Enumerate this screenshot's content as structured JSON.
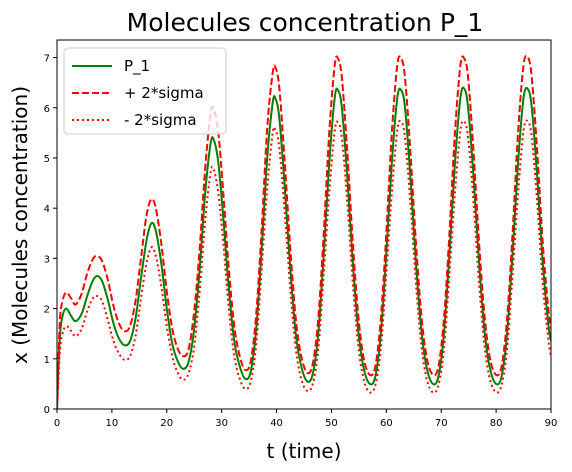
{
  "chart_data": {
    "type": "line",
    "title": "Molecules concentration P_1",
    "xlabel": "t (time)",
    "ylabel": "x (Molecules concentration)",
    "xlim": [
      0,
      90
    ],
    "ylim": [
      0,
      7.35
    ],
    "xticks": [
      "0",
      "10",
      "20",
      "30",
      "40",
      "50",
      "60",
      "70",
      "80",
      "90"
    ],
    "yticks": [
      "0",
      "1",
      "2",
      "3",
      "4",
      "5",
      "6",
      "7"
    ],
    "grid": false,
    "legend_position": "top-left",
    "colors": {
      "P_1": "#008000",
      "plus": "#ff0000",
      "minus": "#ff0000"
    },
    "series": [
      {
        "name": "P_1",
        "style": "solid",
        "points": [
          [
            0,
            0
          ],
          [
            0.5,
            1.4
          ],
          [
            1,
            1.85
          ],
          [
            1.7,
            2.0
          ],
          [
            2.6,
            1.85
          ],
          [
            3.4,
            1.75
          ],
          [
            4.5,
            1.9
          ],
          [
            5.5,
            2.25
          ],
          [
            6.5,
            2.55
          ],
          [
            7.3,
            2.65
          ],
          [
            8.2,
            2.55
          ],
          [
            9.2,
            2.2
          ],
          [
            10.3,
            1.7
          ],
          [
            11.3,
            1.4
          ],
          [
            12.3,
            1.27
          ],
          [
            13.3,
            1.35
          ],
          [
            14.3,
            1.8
          ],
          [
            15.3,
            2.6
          ],
          [
            16.3,
            3.35
          ],
          [
            17.2,
            3.7
          ],
          [
            18.0,
            3.55
          ],
          [
            19.0,
            2.9
          ],
          [
            20.0,
            2.0
          ],
          [
            21.0,
            1.3
          ],
          [
            22.0,
            0.95
          ],
          [
            23.0,
            0.8
          ],
          [
            24.0,
            0.95
          ],
          [
            25.0,
            1.6
          ],
          [
            26.0,
            2.8
          ],
          [
            27.0,
            4.3
          ],
          [
            28.0,
            5.3
          ],
          [
            28.6,
            5.35
          ],
          [
            29.4,
            4.9
          ],
          [
            30.3,
            3.8
          ],
          [
            31.3,
            2.4
          ],
          [
            32.3,
            1.35
          ],
          [
            33.3,
            0.85
          ],
          [
            34.3,
            0.6
          ],
          [
            35.3,
            0.75
          ],
          [
            36.3,
            1.6
          ],
          [
            37.3,
            3.2
          ],
          [
            38.3,
            5.0
          ],
          [
            39.3,
            6.1
          ],
          [
            39.8,
            6.18
          ],
          [
            40.5,
            5.8
          ],
          [
            41.5,
            4.4
          ],
          [
            42.5,
            2.8
          ],
          [
            43.5,
            1.5
          ],
          [
            44.5,
            0.85
          ],
          [
            45.6,
            0.55
          ],
          [
            46.6,
            0.7
          ],
          [
            47.6,
            1.5
          ],
          [
            48.6,
            3.1
          ],
          [
            49.6,
            4.9
          ],
          [
            50.6,
            6.2
          ],
          [
            51.2,
            6.35
          ],
          [
            51.9,
            6.0
          ],
          [
            52.9,
            4.6
          ],
          [
            53.9,
            2.9
          ],
          [
            54.9,
            1.55
          ],
          [
            55.9,
            0.8
          ],
          [
            57.0,
            0.5
          ],
          [
            58.0,
            0.65
          ],
          [
            59.0,
            1.5
          ],
          [
            60.0,
            3.1
          ],
          [
            61.0,
            4.9
          ],
          [
            62.0,
            6.2
          ],
          [
            62.7,
            6.35
          ],
          [
            63.4,
            6.0
          ],
          [
            64.4,
            4.6
          ],
          [
            65.4,
            2.9
          ],
          [
            66.4,
            1.55
          ],
          [
            67.4,
            0.8
          ],
          [
            68.5,
            0.5
          ],
          [
            69.5,
            0.65
          ],
          [
            70.5,
            1.5
          ],
          [
            71.5,
            3.1
          ],
          [
            72.5,
            4.9
          ],
          [
            73.5,
            6.2
          ],
          [
            74.2,
            6.38
          ],
          [
            74.9,
            6.0
          ],
          [
            75.9,
            4.6
          ],
          [
            76.9,
            2.9
          ],
          [
            77.9,
            1.55
          ],
          [
            78.9,
            0.8
          ],
          [
            80.0,
            0.5
          ],
          [
            81.0,
            0.65
          ],
          [
            82.0,
            1.5
          ],
          [
            83.0,
            3.1
          ],
          [
            84.0,
            4.9
          ],
          [
            85.0,
            6.2
          ],
          [
            85.8,
            6.37
          ],
          [
            86.5,
            6.0
          ],
          [
            87.5,
            4.6
          ],
          [
            88.5,
            2.9
          ],
          [
            89.5,
            1.7
          ],
          [
            90,
            1.35
          ]
        ]
      },
      {
        "name": "+ 2*sigma",
        "style": "dashed",
        "points": [
          [
            0,
            0
          ],
          [
            0.5,
            1.7
          ],
          [
            1,
            2.15
          ],
          [
            1.7,
            2.32
          ],
          [
            2.6,
            2.2
          ],
          [
            3.4,
            2.08
          ],
          [
            4.5,
            2.3
          ],
          [
            5.5,
            2.7
          ],
          [
            6.5,
            2.98
          ],
          [
            7.3,
            3.05
          ],
          [
            8.2,
            2.95
          ],
          [
            9.2,
            2.6
          ],
          [
            10.3,
            2.05
          ],
          [
            11.3,
            1.7
          ],
          [
            12.3,
            1.55
          ],
          [
            13.3,
            1.65
          ],
          [
            14.3,
            2.15
          ],
          [
            15.3,
            3.0
          ],
          [
            16.3,
            3.85
          ],
          [
            17.2,
            4.18
          ],
          [
            18.0,
            4.0
          ],
          [
            19.0,
            3.3
          ],
          [
            20.0,
            2.35
          ],
          [
            21.0,
            1.6
          ],
          [
            22.0,
            1.2
          ],
          [
            23.0,
            1.05
          ],
          [
            24.0,
            1.2
          ],
          [
            25.0,
            1.95
          ],
          [
            26.0,
            3.2
          ],
          [
            27.0,
            4.8
          ],
          [
            28.0,
            5.9
          ],
          [
            28.6,
            5.95
          ],
          [
            29.4,
            5.5
          ],
          [
            30.3,
            4.3
          ],
          [
            31.3,
            2.8
          ],
          [
            32.3,
            1.65
          ],
          [
            33.3,
            1.05
          ],
          [
            34.3,
            0.78
          ],
          [
            35.3,
            0.95
          ],
          [
            36.3,
            1.9
          ],
          [
            37.3,
            3.6
          ],
          [
            38.3,
            5.6
          ],
          [
            39.3,
            6.7
          ],
          [
            39.8,
            6.8
          ],
          [
            40.5,
            6.4
          ],
          [
            41.5,
            4.9
          ],
          [
            42.5,
            3.2
          ],
          [
            43.5,
            1.8
          ],
          [
            44.5,
            1.05
          ],
          [
            45.6,
            0.72
          ],
          [
            46.6,
            0.9
          ],
          [
            47.6,
            1.8
          ],
          [
            48.6,
            3.5
          ],
          [
            49.6,
            5.5
          ],
          [
            50.6,
            6.85
          ],
          [
            51.2,
            6.98
          ],
          [
            51.9,
            6.6
          ],
          [
            52.9,
            5.1
          ],
          [
            53.9,
            3.3
          ],
          [
            54.9,
            1.85
          ],
          [
            55.9,
            1.0
          ],
          [
            57.0,
            0.68
          ],
          [
            58.0,
            0.85
          ],
          [
            59.0,
            1.8
          ],
          [
            60.0,
            3.5
          ],
          [
            61.0,
            5.5
          ],
          [
            62.0,
            6.85
          ],
          [
            62.7,
            6.98
          ],
          [
            63.4,
            6.6
          ],
          [
            64.4,
            5.1
          ],
          [
            65.4,
            3.3
          ],
          [
            66.4,
            1.85
          ],
          [
            67.4,
            1.0
          ],
          [
            68.5,
            0.68
          ],
          [
            69.5,
            0.85
          ],
          [
            70.5,
            1.8
          ],
          [
            71.5,
            3.5
          ],
          [
            72.5,
            5.5
          ],
          [
            73.5,
            6.85
          ],
          [
            74.2,
            6.98
          ],
          [
            74.9,
            6.6
          ],
          [
            75.9,
            5.1
          ],
          [
            76.9,
            3.3
          ],
          [
            77.9,
            1.85
          ],
          [
            78.9,
            1.0
          ],
          [
            80.0,
            0.68
          ],
          [
            81.0,
            0.85
          ],
          [
            82.0,
            1.8
          ],
          [
            83.0,
            3.5
          ],
          [
            84.0,
            5.5
          ],
          [
            85.0,
            6.85
          ],
          [
            85.8,
            7.0
          ],
          [
            86.5,
            6.6
          ],
          [
            87.5,
            5.1
          ],
          [
            88.5,
            3.3
          ],
          [
            89.5,
            2.0
          ],
          [
            90,
            1.6
          ]
        ]
      },
      {
        "name": "- 2*sigma",
        "style": "dotted",
        "points": [
          [
            0,
            0
          ],
          [
            0.5,
            1.1
          ],
          [
            1,
            1.5
          ],
          [
            1.7,
            1.65
          ],
          [
            2.6,
            1.55
          ],
          [
            3.4,
            1.45
          ],
          [
            4.5,
            1.6
          ],
          [
            5.5,
            1.95
          ],
          [
            6.5,
            2.2
          ],
          [
            7.3,
            2.25
          ],
          [
            8.2,
            2.15
          ],
          [
            9.2,
            1.8
          ],
          [
            10.3,
            1.35
          ],
          [
            11.3,
            1.1
          ],
          [
            12.3,
            0.98
          ],
          [
            13.3,
            1.05
          ],
          [
            14.3,
            1.45
          ],
          [
            15.3,
            2.2
          ],
          [
            16.3,
            2.9
          ],
          [
            17.2,
            3.22
          ],
          [
            18.0,
            3.05
          ],
          [
            19.0,
            2.45
          ],
          [
            20.0,
            1.65
          ],
          [
            21.0,
            1.05
          ],
          [
            22.0,
            0.72
          ],
          [
            23.0,
            0.58
          ],
          [
            24.0,
            0.72
          ],
          [
            25.0,
            1.25
          ],
          [
            26.0,
            2.35
          ],
          [
            27.0,
            3.75
          ],
          [
            28.0,
            4.72
          ],
          [
            28.6,
            4.75
          ],
          [
            29.4,
            4.3
          ],
          [
            30.3,
            3.3
          ],
          [
            31.3,
            2.0
          ],
          [
            32.3,
            1.05
          ],
          [
            33.3,
            0.6
          ],
          [
            34.3,
            0.4
          ],
          [
            35.3,
            0.55
          ],
          [
            36.3,
            1.3
          ],
          [
            37.3,
            2.8
          ],
          [
            38.3,
            4.4
          ],
          [
            39.3,
            5.5
          ],
          [
            39.8,
            5.55
          ],
          [
            40.5,
            5.2
          ],
          [
            41.5,
            3.9
          ],
          [
            42.5,
            2.4
          ],
          [
            43.5,
            1.2
          ],
          [
            44.5,
            0.6
          ],
          [
            45.6,
            0.36
          ],
          [
            46.6,
            0.5
          ],
          [
            47.6,
            1.2
          ],
          [
            48.6,
            2.7
          ],
          [
            49.6,
            4.3
          ],
          [
            50.6,
            5.55
          ],
          [
            51.2,
            5.7
          ],
          [
            51.9,
            5.4
          ],
          [
            52.9,
            4.1
          ],
          [
            53.9,
            2.5
          ],
          [
            54.9,
            1.25
          ],
          [
            55.9,
            0.58
          ],
          [
            57.0,
            0.33
          ],
          [
            58.0,
            0.48
          ],
          [
            59.0,
            1.2
          ],
          [
            60.0,
            2.7
          ],
          [
            61.0,
            4.3
          ],
          [
            62.0,
            5.55
          ],
          [
            62.7,
            5.72
          ],
          [
            63.4,
            5.4
          ],
          [
            64.4,
            4.1
          ],
          [
            65.4,
            2.5
          ],
          [
            66.4,
            1.25
          ],
          [
            67.4,
            0.58
          ],
          [
            68.5,
            0.33
          ],
          [
            69.5,
            0.48
          ],
          [
            70.5,
            1.2
          ],
          [
            71.5,
            2.7
          ],
          [
            72.5,
            4.3
          ],
          [
            73.5,
            5.55
          ],
          [
            74.2,
            5.72
          ],
          [
            74.9,
            5.4
          ],
          [
            75.9,
            4.1
          ],
          [
            76.9,
            2.5
          ],
          [
            77.9,
            1.25
          ],
          [
            78.9,
            0.58
          ],
          [
            80.0,
            0.33
          ],
          [
            81.0,
            0.48
          ],
          [
            82.0,
            1.2
          ],
          [
            83.0,
            2.7
          ],
          [
            84.0,
            4.3
          ],
          [
            85.0,
            5.55
          ],
          [
            85.8,
            5.73
          ],
          [
            86.5,
            5.4
          ],
          [
            87.5,
            4.1
          ],
          [
            88.5,
            2.5
          ],
          [
            89.5,
            1.4
          ],
          [
            90,
            1.05
          ]
        ]
      }
    ]
  }
}
